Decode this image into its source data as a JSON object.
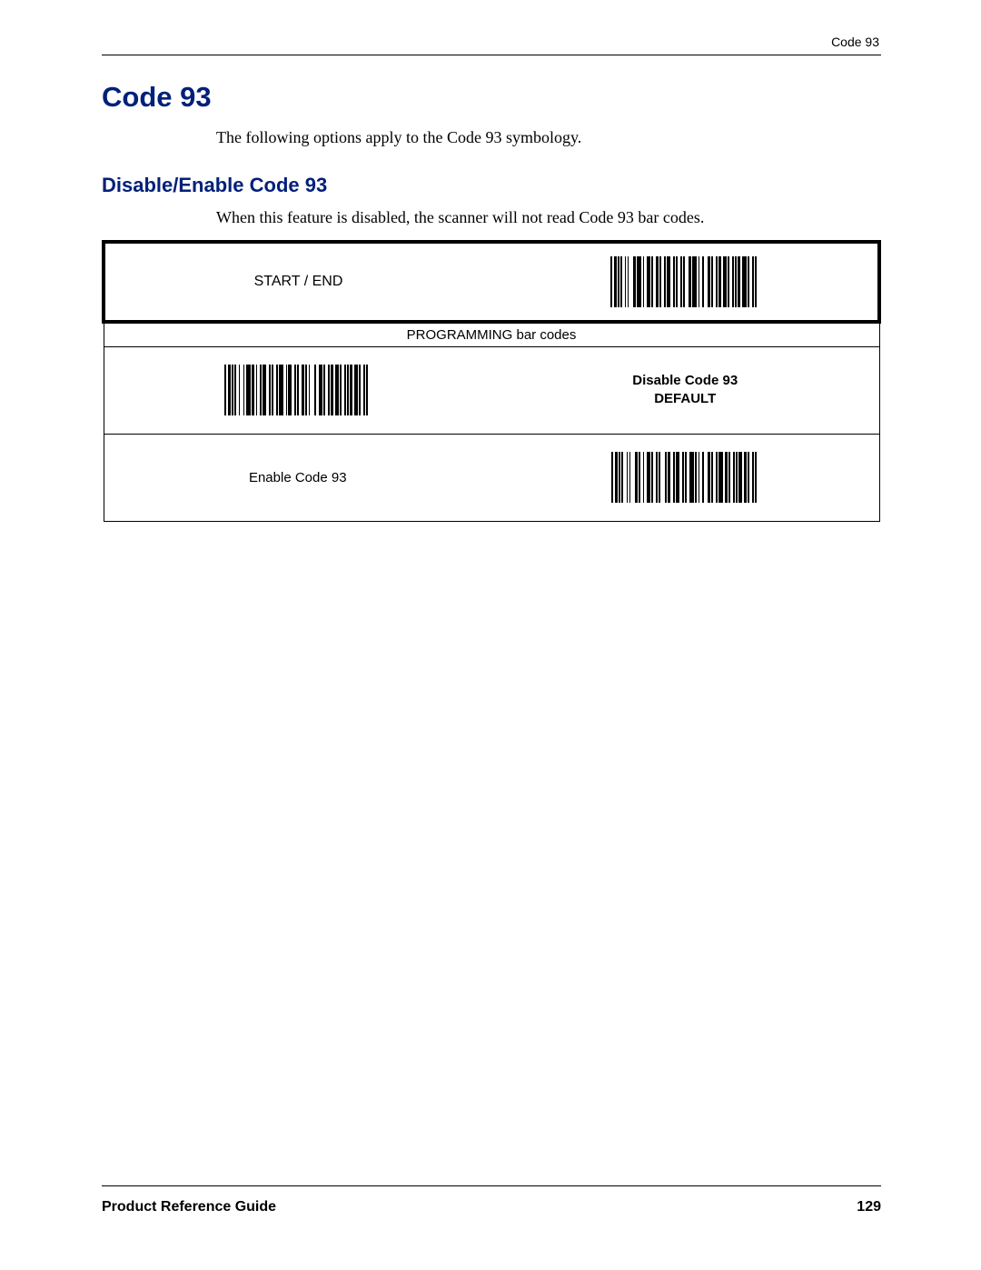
{
  "header": {
    "section_label": "Code 93"
  },
  "h1": "Code 93",
  "intro": "The following options apply to the Code 93 symbology.",
  "h2": "Disable/Enable Code 93",
  "sub_intro": "When this feature is disabled, the scanner will not read Code 93 bar codes.",
  "table": {
    "start_end_label": "START / END",
    "programming_header": "PROGRAMMING bar codes",
    "option_disable_line1": "Disable Code 93",
    "option_disable_line2": "DEFAULT",
    "option_enable": "Enable Code 93"
  },
  "footer": {
    "guide": "Product Reference Guide",
    "page": "129"
  },
  "colors": {
    "heading_blue": "#00207a",
    "text_black": "#000000",
    "rule": "#000000",
    "background": "#ffffff"
  },
  "barcodes": {
    "start_end": [
      2,
      2,
      3,
      1,
      2,
      1,
      2,
      3,
      1,
      2,
      1,
      5,
      3,
      1,
      5,
      2,
      1,
      3,
      4,
      1,
      2,
      3,
      3,
      1,
      2,
      3,
      2,
      1,
      4,
      3,
      2,
      1,
      2,
      3,
      2,
      1,
      2,
      4,
      3,
      1,
      5,
      2,
      1,
      3,
      2,
      4,
      3,
      1,
      2,
      3,
      2,
      1,
      3,
      2,
      4,
      1,
      2,
      3,
      2,
      1,
      2,
      1,
      3,
      2,
      5,
      1,
      2,
      3,
      2,
      1,
      2,
      3
    ],
    "disable": [
      2,
      2,
      3,
      1,
      2,
      1,
      2,
      3,
      1,
      4,
      1,
      2,
      5,
      1,
      3,
      2,
      1,
      3,
      2,
      1,
      4,
      3,
      2,
      1,
      2,
      3,
      2,
      1,
      5,
      3,
      1,
      1,
      4,
      3,
      2,
      1,
      2,
      3,
      3,
      1,
      2,
      2,
      1,
      5,
      2,
      3,
      4,
      1,
      2,
      3,
      2,
      1,
      3,
      2,
      4,
      1,
      2,
      3,
      2,
      1,
      2,
      1,
      3,
      2,
      4,
      1,
      2,
      3,
      2,
      1,
      2,
      3
    ],
    "enable": [
      2,
      2,
      3,
      1,
      2,
      1,
      2,
      4,
      1,
      2,
      1,
      5,
      3,
      1,
      2,
      3,
      1,
      3,
      4,
      1,
      2,
      3,
      2,
      1,
      2,
      5,
      2,
      1,
      3,
      3,
      2,
      1,
      4,
      3,
      2,
      1,
      2,
      3,
      5,
      1,
      2,
      2,
      1,
      3,
      2,
      4,
      3,
      1,
      2,
      3,
      2,
      1,
      5,
      2,
      3,
      1,
      2,
      3,
      2,
      1,
      2,
      1,
      4,
      2,
      3,
      1,
      2,
      3,
      2,
      1,
      2,
      3
    ]
  }
}
